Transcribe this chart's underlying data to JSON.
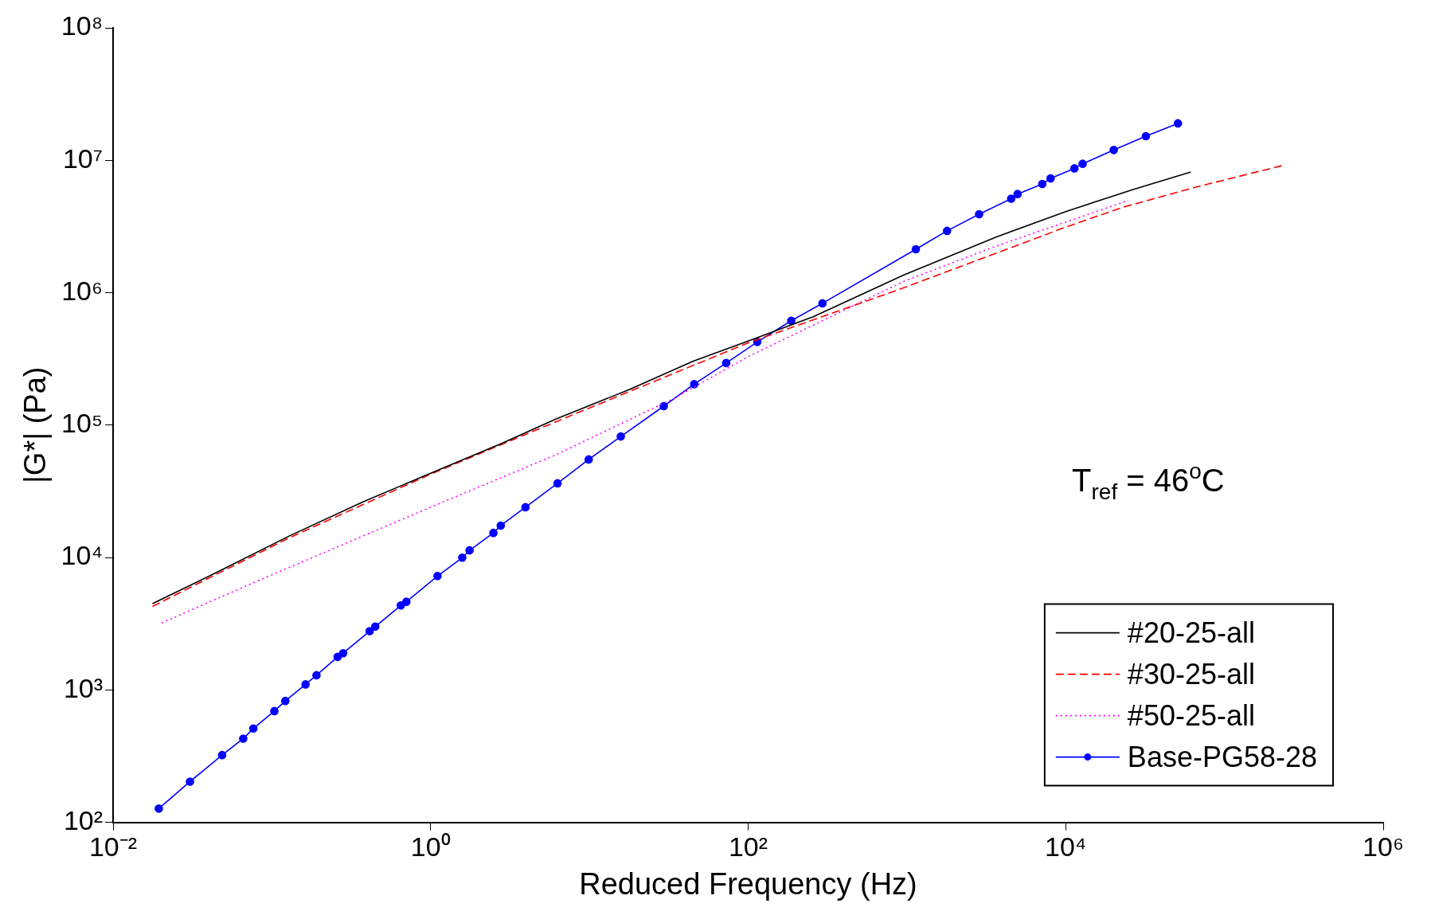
{
  "chart_data": {
    "type": "line",
    "xlabel": "Reduced Frequency (Hz)",
    "ylabel": "|G*| (Pa)",
    "log": "xy",
    "grid": false,
    "legend": "bottom right",
    "xlim": [
      0.01,
      1000000
    ],
    "xticks": [
      {
        "value": 0.01,
        "label": "10⁻²"
      },
      {
        "value": 1,
        "label": "10⁰"
      },
      {
        "value": 100,
        "label": "10²"
      },
      {
        "value": 10000,
        "label": "10⁴"
      },
      {
        "value": 1000000,
        "label": "10⁶"
      }
    ],
    "ylim": [
      100,
      100000000
    ],
    "yticks": [
      {
        "value": 100,
        "label": "10²"
      },
      {
        "value": 1000,
        "label": "10³"
      },
      {
        "value": 10000,
        "label": "10⁴"
      },
      {
        "value": 100000,
        "label": "10⁵"
      },
      {
        "value": 1000000,
        "label": "10⁶"
      },
      {
        "value": 10000000,
        "label": "10⁷"
      },
      {
        "value": 100000000,
        "label": "10⁸"
      }
    ],
    "annotations": [
      "T$_{ref}$ = 46$^{o}$C"
    ],
    "series": [
      {
        "name": "#20-25-all",
        "color": "#000000",
        "line_style": "solid",
        "marker": "none",
        "x": [
          0.0177,
          0.0449,
          0.13,
          0.377,
          1,
          2.77,
          6.14,
          17.8,
          45.1,
          100,
          253.5,
          957,
          3616,
          10000,
          26560,
          61380
        ],
        "values": [
          4487,
          7720,
          14620,
          26400,
          43300,
          72200,
          111100,
          185300,
          303800,
          431800,
          654300,
          1363000,
          2620000,
          4100000,
          6020000,
          8150000
        ]
      },
      {
        "name": "#30-25-all",
        "color": "#ff0000",
        "line_style": "dashed",
        "marker": "none",
        "x": [
          0.0177,
          0.13,
          1,
          6.14,
          100,
          957,
          10000,
          23260,
          67330,
          231800
        ],
        "values": [
          4276,
          14160,
          42620,
          105900,
          418200,
          1090000,
          3130000,
          4440000,
          6310000,
          9120000
        ]
      },
      {
        "name": "#50-25-all",
        "color": "#ff00ff",
        "line_style": "dotted",
        "marker": "none",
        "x": [
          0.0202,
          0.0873,
          1,
          6.14,
          34.5,
          100,
          957,
          3616,
          24850
        ],
        "values": [
          3208,
          6903,
          23990,
          59600,
          160400,
          329000,
          1219000,
          2240000,
          4970000
        ]
      },
      {
        "name": "Base-PG58-28",
        "color": "#0000ff",
        "line_style": "solid",
        "marker": "circle",
        "x": [
          0.0194,
          0.0305,
          0.0486,
          0.066,
          0.0764,
          0.1037,
          0.1216,
          0.163,
          0.191,
          0.2595,
          0.281,
          0.413,
          0.448,
          0.649,
          0.703,
          1.105,
          1.582,
          1.759,
          2.486,
          2.765,
          3.958,
          6.3,
          9.9,
          15.77,
          29.4,
          45.7,
          72.7,
          114.2,
          186.8,
          293.6,
          1138,
          1790,
          2849,
          4536,
          4977,
          7125,
          8035,
          11350,
          12790,
          20090,
          31990,
          50930
        ],
        "values": [
          127,
          203,
          322,
          429,
          511,
          692,
          826,
          1101,
          1291,
          1776,
          1894,
          2779,
          3009,
          4345,
          4630,
          7244,
          9968,
          11320,
          15340,
          17430,
          23990,
          36330,
          55050,
          82040,
          139000,
          203800,
          294300,
          424900,
          613600,
          831000,
          2130000,
          2930000,
          3910000,
          5130000,
          5560000,
          6620000,
          7290000,
          8690000,
          9410000,
          11960000,
          15200000,
          19000000
        ]
      }
    ]
  }
}
